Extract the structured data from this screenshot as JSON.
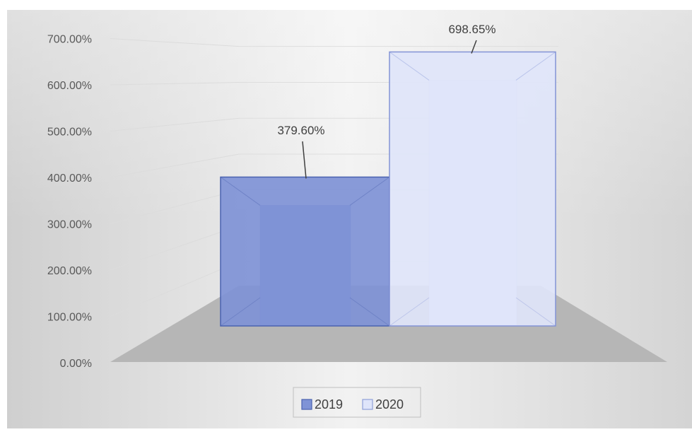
{
  "chart_data": {
    "type": "bar",
    "categories": [
      ""
    ],
    "series": [
      {
        "name": "2019",
        "values": [
          379.6
        ],
        "label": "379.60%",
        "color": "#7f93d6"
      },
      {
        "name": "2020",
        "values": [
          698.65
        ],
        "label": "698.65%",
        "color": "#dfe5fa"
      }
    ],
    "yticks": [
      "0.00%",
      "100.00%",
      "200.00%",
      "300.00%",
      "400.00%",
      "500.00%",
      "600.00%",
      "700.00%"
    ],
    "ylim": [
      0,
      700
    ],
    "title": "",
    "xlabel": "",
    "ylabel": "",
    "style": "3d-column",
    "grid": true,
    "legend": "bottom-center"
  }
}
